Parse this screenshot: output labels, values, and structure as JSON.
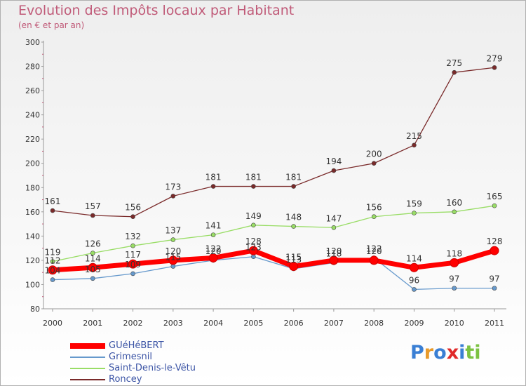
{
  "chart_data": {
    "type": "line",
    "title": "Evolution des Impôts locaux par Habitant",
    "subtitle": "(en € et par an)",
    "xlabel": "",
    "ylabel": "",
    "ylim": [
      80,
      300
    ],
    "yticks": [
      80,
      100,
      120,
      140,
      160,
      180,
      200,
      220,
      240,
      260,
      280,
      300
    ],
    "x": [
      "2000",
      "2001",
      "2002",
      "2003",
      "2004",
      "2005",
      "2006",
      "2007",
      "2008",
      "2009",
      "2010",
      "2011"
    ],
    "grid": false,
    "legend_position": "bottom-left",
    "series": [
      {
        "name": "GUéHéBERT",
        "color": "#ff0000",
        "values": [
          112,
          114,
          117,
          120,
          122,
          128,
          115,
          120,
          120,
          114,
          118,
          128
        ]
      },
      {
        "name": "Grimesnil",
        "color": "#6699cc",
        "values": [
          104,
          105,
          109,
          115,
          120,
          123,
          113,
          118,
          122,
          96,
          97,
          97
        ]
      },
      {
        "name": "Saint-Denis-le-Vêtu",
        "color": "#99dd66",
        "values": [
          119,
          126,
          132,
          137,
          141,
          149,
          148,
          147,
          156,
          159,
          160,
          165
        ]
      },
      {
        "name": "Roncey",
        "color": "#7a2a2a",
        "values": [
          161,
          157,
          156,
          173,
          181,
          181,
          181,
          194,
          200,
          215,
          275,
          279
        ]
      }
    ]
  },
  "logo": {
    "text": "Proxiti",
    "letters": [
      "P",
      "r",
      "o",
      "x",
      "i",
      "t",
      "i"
    ],
    "colors": [
      "#3a7fd4",
      "#e89a2a",
      "#3a7fd4",
      "#e02a2a",
      "#3a7fd4",
      "#7cc242",
      "#7cc242"
    ]
  }
}
